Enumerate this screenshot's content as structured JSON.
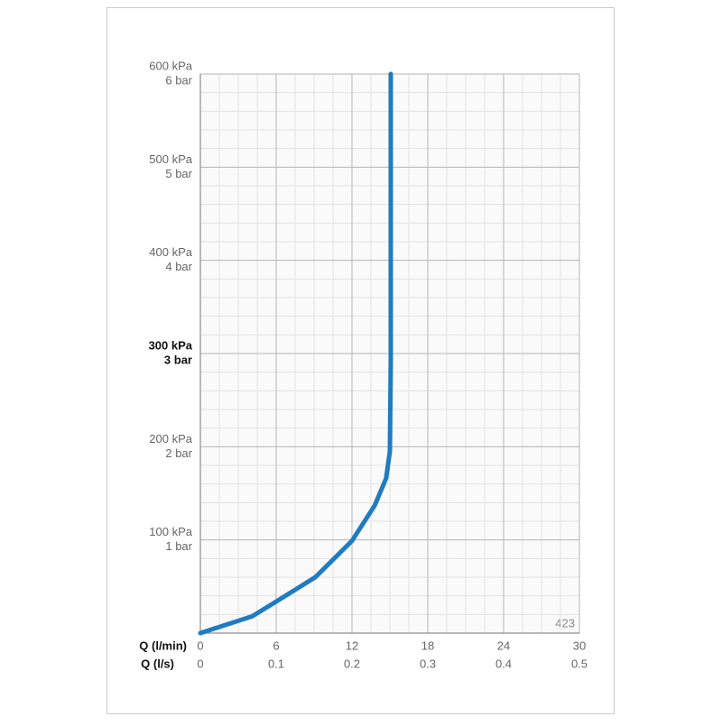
{
  "chart_data": {
    "type": "line",
    "x_label": "Q (l/min)",
    "x2_label": "Q (l/s)",
    "x": [
      0,
      4.1,
      5.9,
      9.1,
      12,
      13.8,
      14.7,
      15,
      15.07,
      15.07
    ],
    "series": [
      {
        "color": "#1f7cc1",
        "values": [
          0,
          18,
          33,
          60,
          99,
          137,
          166,
          195,
          292,
          600
        ]
      }
    ],
    "xlim": [
      0,
      30
    ],
    "xticks": [
      0,
      6,
      12,
      18,
      24,
      30
    ],
    "x2lim": [
      0,
      0.5
    ],
    "x2ticks": [
      0,
      0.1,
      0.2,
      0.3,
      0.4,
      0.5
    ],
    "ylim": [
      0,
      600
    ],
    "yticks": [
      {
        "value": 100,
        "label": "100 kPa"
      },
      {
        "value": 200,
        "label": "200 kPa"
      },
      {
        "value": 300,
        "label": "300 kPa"
      },
      {
        "value": 400,
        "label": "400 kPa"
      },
      {
        "value": 500,
        "label": "500 kPa"
      },
      {
        "value": 600,
        "label": "600 kPa"
      }
    ],
    "y2lim": [
      0,
      6
    ],
    "y2ticks": [
      {
        "value": 1,
        "label": "1 bar"
      },
      {
        "value": 2,
        "label": "2 bar"
      },
      {
        "value": 3,
        "label": "3 bar"
      },
      {
        "value": 4,
        "label": "4 bar"
      },
      {
        "value": 5,
        "label": "5 bar"
      },
      {
        "value": 6,
        "label": "6 bar"
      }
    ],
    "highlight_y": 300,
    "grid": true,
    "x_minor_per_major": 4,
    "y_minor_per_major": 5,
    "annotation": "423"
  }
}
